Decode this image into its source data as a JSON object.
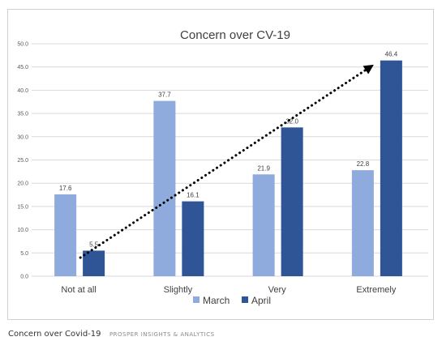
{
  "caption": {
    "title": "Concern over Covid-19",
    "credit": "PROSPER INSIGHTS & ANALYTICS"
  },
  "chart_data": {
    "type": "bar",
    "title": "Concern over CV-19",
    "categories": [
      "Not at all",
      "Slightly",
      "Very",
      "Extremely"
    ],
    "series": [
      {
        "name": "March",
        "values": [
          17.6,
          37.7,
          21.9,
          22.8
        ],
        "color": "#8faadc"
      },
      {
        "name": "April",
        "values": [
          5.5,
          16.1,
          32.0,
          46.4
        ],
        "color": "#2f5597"
      }
    ],
    "data_labels": {
      "March": [
        "17.6",
        "37.7",
        "21.9",
        "22.8"
      ],
      "April": [
        "5.5",
        "16.1",
        "32.0",
        "46.4"
      ]
    },
    "ylim": [
      0,
      50
    ],
    "yticks": [
      "0.0",
      "5.0",
      "10.0",
      "15.0",
      "20.0",
      "25.0",
      "30.0",
      "35.0",
      "40.0",
      "45.0",
      "50.0"
    ],
    "grid": true,
    "legend_position": "bottom",
    "trend_arrow": {
      "from": [
        "Not at all",
        4.0
      ],
      "to": [
        "Extremely",
        45.5
      ],
      "style": "dotted",
      "color": "#000000"
    },
    "gridline_color": "#d9d9d9"
  }
}
